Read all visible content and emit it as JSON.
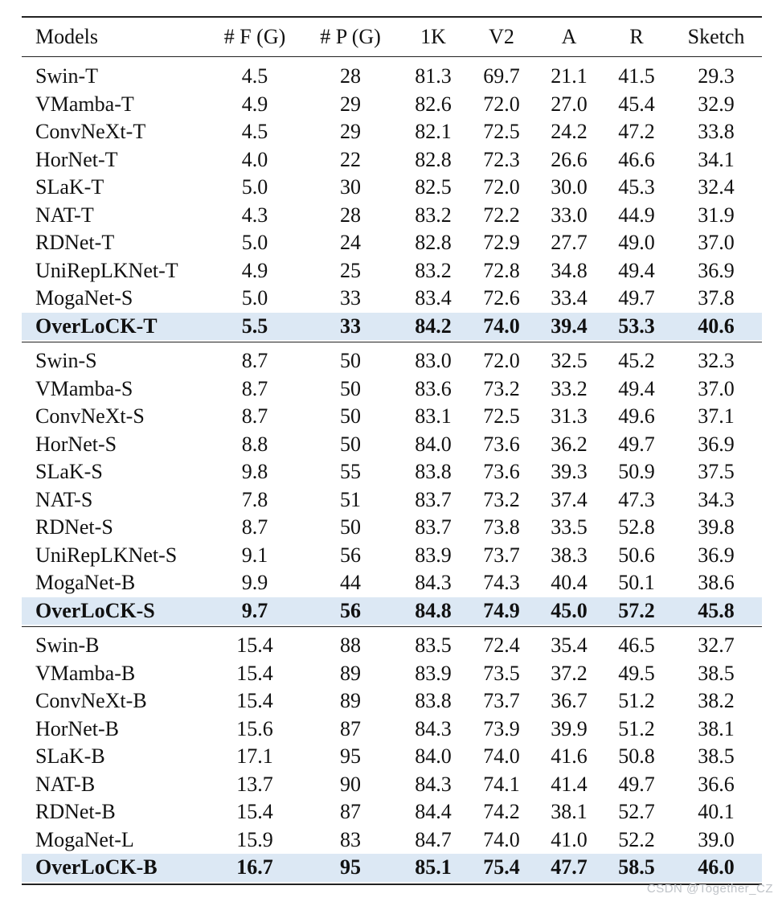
{
  "columns": [
    "Models",
    "# F (G)",
    "# P (G)",
    "1K",
    "V2",
    "A",
    "R",
    "Sketch"
  ],
  "groups": [
    {
      "rows": [
        {
          "cells": [
            "Swin-T",
            "4.5",
            "28",
            "81.3",
            "69.7",
            "21.1",
            "41.5",
            "29.3"
          ],
          "highlight": false
        },
        {
          "cells": [
            "VMamba-T",
            "4.9",
            "29",
            "82.6",
            "72.0",
            "27.0",
            "45.4",
            "32.9"
          ],
          "highlight": false
        },
        {
          "cells": [
            "ConvNeXt-T",
            "4.5",
            "29",
            "82.1",
            "72.5",
            "24.2",
            "47.2",
            "33.8"
          ],
          "highlight": false
        },
        {
          "cells": [
            "HorNet-T",
            "4.0",
            "22",
            "82.8",
            "72.3",
            "26.6",
            "46.6",
            "34.1"
          ],
          "highlight": false
        },
        {
          "cells": [
            "SLaK-T",
            "5.0",
            "30",
            "82.5",
            "72.0",
            "30.0",
            "45.3",
            "32.4"
          ],
          "highlight": false
        },
        {
          "cells": [
            "NAT-T",
            "4.3",
            "28",
            "83.2",
            "72.2",
            "33.0",
            "44.9",
            "31.9"
          ],
          "highlight": false
        },
        {
          "cells": [
            "RDNet-T",
            "5.0",
            "24",
            "82.8",
            "72.9",
            "27.7",
            "49.0",
            "37.0"
          ],
          "highlight": false
        },
        {
          "cells": [
            "UniRepLKNet-T",
            "4.9",
            "25",
            "83.2",
            "72.8",
            "34.8",
            "49.4",
            "36.9"
          ],
          "highlight": false
        },
        {
          "cells": [
            "MogaNet-S",
            "5.0",
            "33",
            "83.4",
            "72.6",
            "33.4",
            "49.7",
            "37.8"
          ],
          "highlight": false
        },
        {
          "cells": [
            "OverLoCK-T",
            "5.5",
            "33",
            "84.2",
            "74.0",
            "39.4",
            "53.3",
            "40.6"
          ],
          "highlight": true
        }
      ]
    },
    {
      "rows": [
        {
          "cells": [
            "Swin-S",
            "8.7",
            "50",
            "83.0",
            "72.0",
            "32.5",
            "45.2",
            "32.3"
          ],
          "highlight": false
        },
        {
          "cells": [
            "VMamba-S",
            "8.7",
            "50",
            "83.6",
            "73.2",
            "33.2",
            "49.4",
            "37.0"
          ],
          "highlight": false
        },
        {
          "cells": [
            "ConvNeXt-S",
            "8.7",
            "50",
            "83.1",
            "72.5",
            "31.3",
            "49.6",
            "37.1"
          ],
          "highlight": false
        },
        {
          "cells": [
            "HorNet-S",
            "8.8",
            "50",
            "84.0",
            "73.6",
            "36.2",
            "49.7",
            "36.9"
          ],
          "highlight": false
        },
        {
          "cells": [
            "SLaK-S",
            "9.8",
            "55",
            "83.8",
            "73.6",
            "39.3",
            "50.9",
            "37.5"
          ],
          "highlight": false
        },
        {
          "cells": [
            "NAT-S",
            "7.8",
            "51",
            "83.7",
            "73.2",
            "37.4",
            "47.3",
            "34.3"
          ],
          "highlight": false
        },
        {
          "cells": [
            "RDNet-S",
            "8.7",
            "50",
            "83.7",
            "73.8",
            "33.5",
            "52.8",
            "39.8"
          ],
          "highlight": false
        },
        {
          "cells": [
            "UniRepLKNet-S",
            "9.1",
            "56",
            "83.9",
            "73.7",
            "38.3",
            "50.6",
            "36.9"
          ],
          "highlight": false
        },
        {
          "cells": [
            "MogaNet-B",
            "9.9",
            "44",
            "84.3",
            "74.3",
            "40.4",
            "50.1",
            "38.6"
          ],
          "highlight": false
        },
        {
          "cells": [
            "OverLoCK-S",
            "9.7",
            "56",
            "84.8",
            "74.9",
            "45.0",
            "57.2",
            "45.8"
          ],
          "highlight": true
        }
      ]
    },
    {
      "rows": [
        {
          "cells": [
            "Swin-B",
            "15.4",
            "88",
            "83.5",
            "72.4",
            "35.4",
            "46.5",
            "32.7"
          ],
          "highlight": false
        },
        {
          "cells": [
            "VMamba-B",
            "15.4",
            "89",
            "83.9",
            "73.5",
            "37.2",
            "49.5",
            "38.5"
          ],
          "highlight": false
        },
        {
          "cells": [
            "ConvNeXt-B",
            "15.4",
            "89",
            "83.8",
            "73.7",
            "36.7",
            "51.2",
            "38.2"
          ],
          "highlight": false
        },
        {
          "cells": [
            "HorNet-B",
            "15.6",
            "87",
            "84.3",
            "73.9",
            "39.9",
            "51.2",
            "38.1"
          ],
          "highlight": false
        },
        {
          "cells": [
            "SLaK-B",
            "17.1",
            "95",
            "84.0",
            "74.0",
            "41.6",
            "50.8",
            "38.5"
          ],
          "highlight": false
        },
        {
          "cells": [
            "NAT-B",
            "13.7",
            "90",
            "84.3",
            "74.1",
            "41.4",
            "49.7",
            "36.6"
          ],
          "highlight": false
        },
        {
          "cells": [
            "RDNet-B",
            "15.4",
            "87",
            "84.4",
            "74.2",
            "38.1",
            "52.7",
            "40.1"
          ],
          "highlight": false
        },
        {
          "cells": [
            "MogaNet-L",
            "15.9",
            "83",
            "84.7",
            "74.0",
            "41.0",
            "52.2",
            "39.0"
          ],
          "highlight": false
        },
        {
          "cells": [
            "OverLoCK-B",
            "16.7",
            "95",
            "85.1",
            "75.4",
            "47.7",
            "58.5",
            "46.0"
          ],
          "highlight": true
        }
      ]
    }
  ],
  "colors": {
    "highlight_row": "#dce8f4",
    "rule": "#222222"
  },
  "watermark": "CSDN @Together_CZ"
}
